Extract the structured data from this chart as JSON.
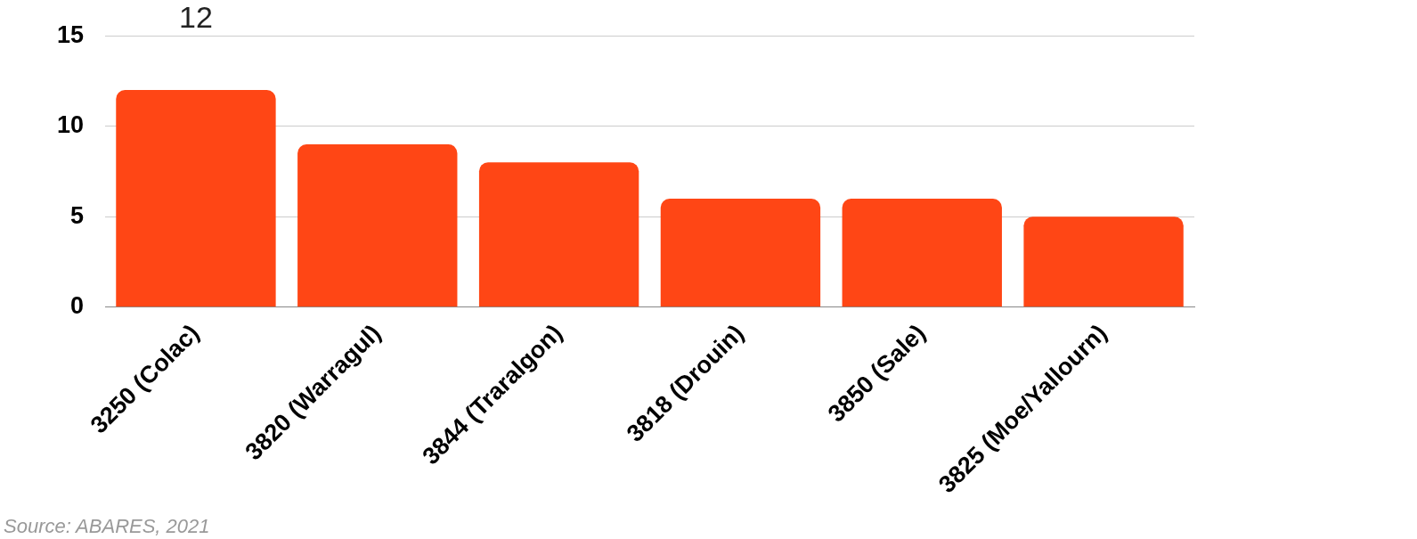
{
  "chart_data": {
    "type": "bar",
    "categories": [
      "3250 (Colac)",
      "3820 (Warragul)",
      "3844 (Traralgon)",
      "3818 (Drouin)",
      "3850 (Sale)",
      "3825 (Moe/Yallourn)"
    ],
    "values": [
      12,
      9,
      8,
      6,
      6,
      5
    ],
    "value_labels": [
      "12",
      null,
      null,
      null,
      null,
      null
    ],
    "color": "#ff4615",
    "ylim": [
      0,
      15
    ],
    "yticks": [
      0,
      5,
      10,
      15
    ],
    "grid": "y",
    "annotations": [
      "Source: ABARES, 2021"
    ]
  }
}
